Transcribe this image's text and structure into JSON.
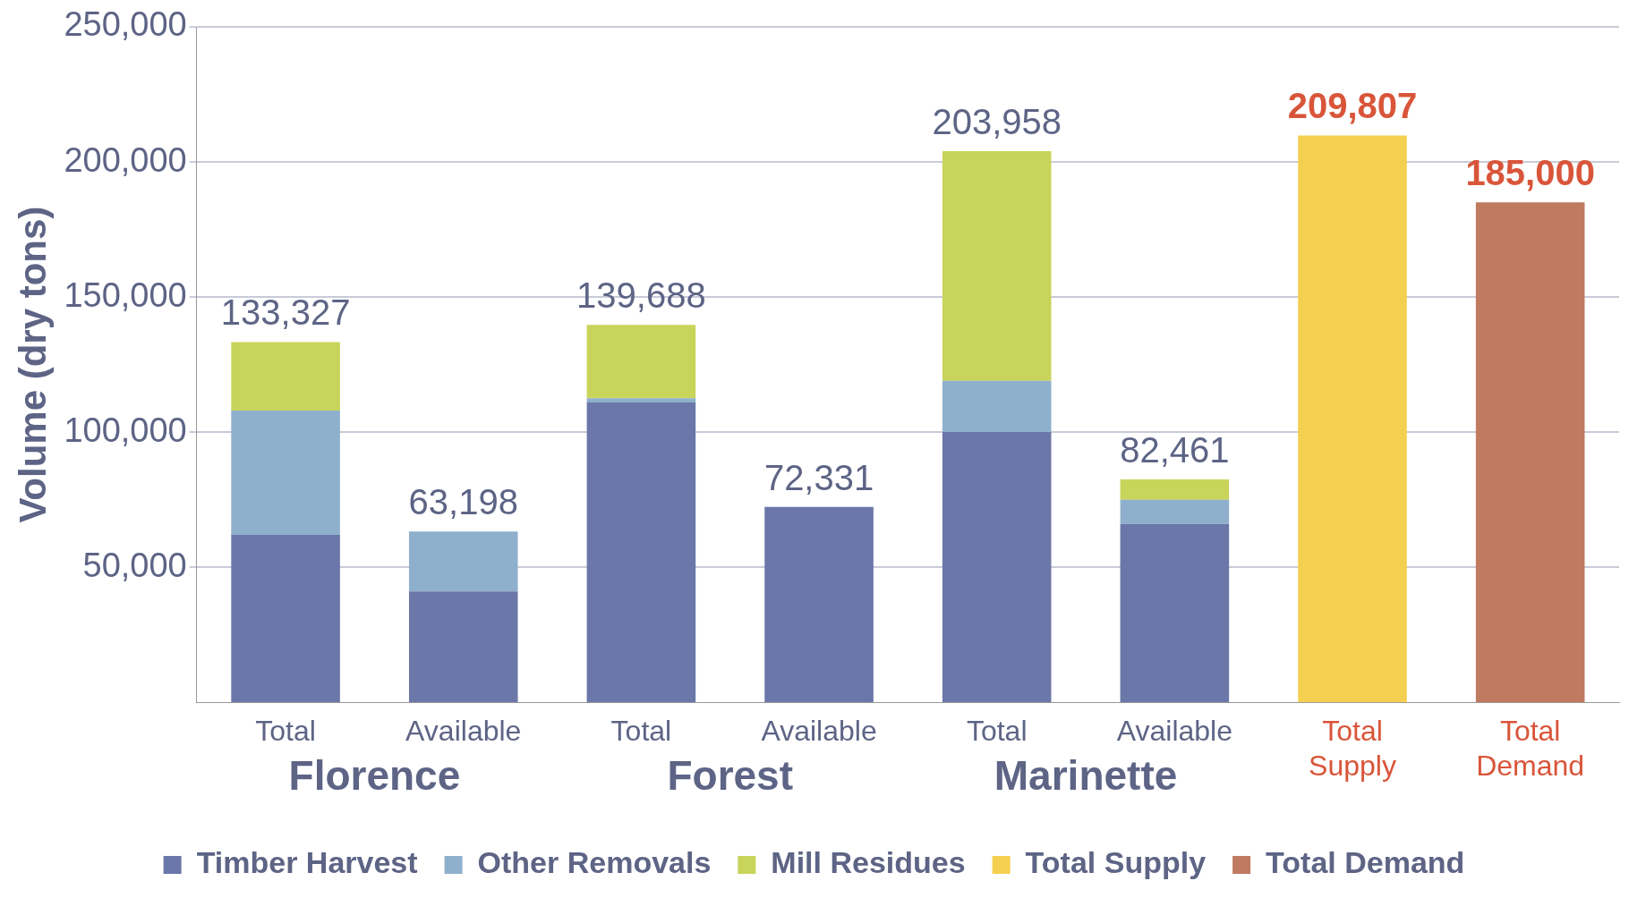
{
  "chart_data": {
    "type": "bar",
    "stacked": true,
    "ylabel": "Volume (dry tons)",
    "categories": [
      "Total",
      "Available",
      "Total",
      "Available",
      "Total",
      "Available",
      "Total Supply",
      "Total Demand"
    ],
    "annotations": [
      "Florence",
      "Forest",
      "Marinette"
    ],
    "series": [
      {
        "name": "Timber Harvest",
        "color": "#6b77a8",
        "values": [
          62000,
          41000,
          111000,
          72331,
          100000,
          66000,
          null,
          null
        ]
      },
      {
        "name": "Other Removals",
        "color": "#8fb0cc",
        "values": [
          46000,
          22198,
          1500,
          null,
          19000,
          9000,
          null,
          null
        ]
      },
      {
        "name": "Mill Residues",
        "color": "#c8d45a",
        "values": [
          25327,
          null,
          27188,
          null,
          84958,
          7461,
          null,
          null
        ]
      },
      {
        "name": "Total Supply",
        "color": "#f5cf4f",
        "values": [
          null,
          null,
          null,
          null,
          null,
          null,
          209807,
          null
        ]
      },
      {
        "name": "Total Demand",
        "color": "#c07a60",
        "values": [
          null,
          null,
          null,
          null,
          null,
          null,
          null,
          185000
        ]
      }
    ],
    "totals": [
      "133,327",
      "63,198",
      "139,688",
      "72,331",
      "203,958",
      "82,461",
      "209,807",
      "185,000"
    ],
    "ylim": [
      0,
      250000
    ],
    "yticks": [
      {
        "value": 50000,
        "label": "50,000"
      },
      {
        "value": 100000,
        "label": "100,000"
      },
      {
        "value": 150000,
        "label": "150,000"
      },
      {
        "value": 200000,
        "label": "200,000"
      },
      {
        "value": 250000,
        "label": "250,000"
      }
    ],
    "grid": "y",
    "legend": "bottom"
  }
}
